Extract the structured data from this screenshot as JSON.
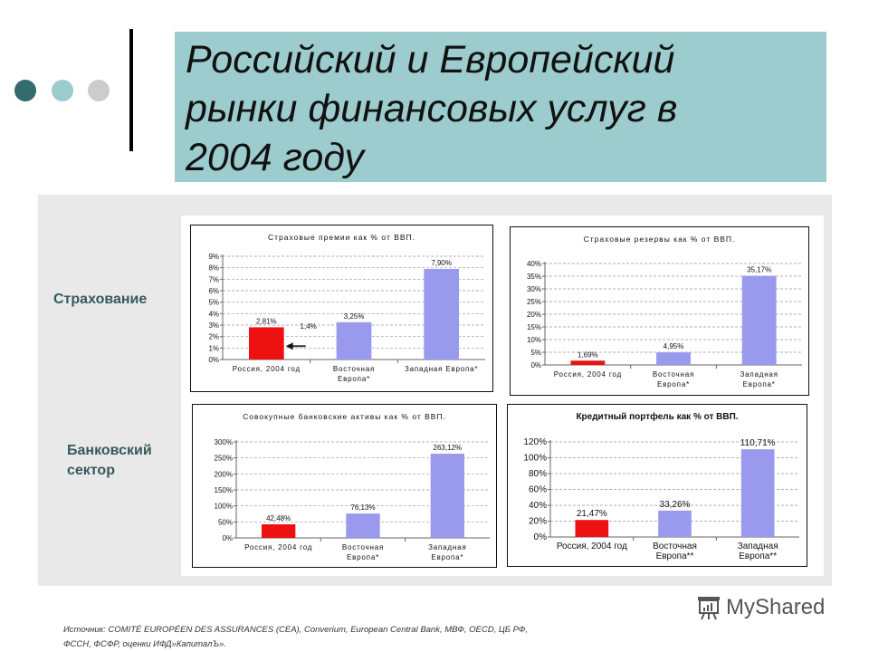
{
  "slide": {
    "title_lines": [
      "Российский и Европейский",
      "рынки финансовых услуг в",
      "2004 году"
    ],
    "dots": [
      "#336b6f",
      "#9ccccd",
      "#cccccc"
    ],
    "section_labels": {
      "insurance": "Страхование",
      "banking_line1": "Банковский",
      "banking_line2": "сектор"
    },
    "source_line1": "Источник: COMITÉ EUROPÉEN DES ASSURANCES (CEA), Converium, European Central Bank, МВФ, OECD, ЦБ РФ,",
    "source_line2": "ФССН, ФСФР, оценки ИФД»КапиталЪ».",
    "watermark": "MyShared"
  },
  "colors": {
    "russia_bar": "#ee1111",
    "europe_bar": "#9999ee",
    "title_bg": "#9ccccd",
    "panel_bg": "#e9e9e9",
    "label_color": "#355a5e"
  },
  "chart_data": [
    {
      "type": "bar",
      "title": "Страховые премии как % от ВВП.",
      "categories": [
        "Россия, 2004 год",
        "Восточная Европа*",
        "Западная Европа*"
      ],
      "values": [
        2.81,
        3.25,
        7.9
      ],
      "value_labels": [
        "2,81%",
        "3,25%",
        "7,90%"
      ],
      "yticks": [
        "0%",
        "1%",
        "2%",
        "3%",
        "4%",
        "5%",
        "6%",
        "7%",
        "8%",
        "9%"
      ],
      "ylim": [
        0,
        9
      ],
      "annotation": {
        "text": "1,4%",
        "arrow_to_value": 1.4
      },
      "grid": true
    },
    {
      "type": "bar",
      "title": "Страховые резервы как % от ВВП.",
      "categories": [
        "Россия, 2004 год",
        "Восточная Европа*",
        "Западная Европа*"
      ],
      "values": [
        1.69,
        4.95,
        35.17
      ],
      "value_labels": [
        "1,69%",
        "4,95%",
        "35,17%"
      ],
      "yticks": [
        "0%",
        "5%",
        "10%",
        "15%",
        "20%",
        "25%",
        "30%",
        "35%",
        "40%"
      ],
      "ylim": [
        0,
        40
      ],
      "grid": true
    },
    {
      "type": "bar",
      "title": "Совокупные банковские активы как % от ВВП.",
      "categories": [
        "Россия, 2004 год",
        "Восточная Европа*",
        "Западная Европа*"
      ],
      "values": [
        42.48,
        76.13,
        263.12
      ],
      "value_labels": [
        "42,48%",
        "76,13%",
        "263,12%"
      ],
      "yticks": [
        "0%",
        "50%",
        "100%",
        "150%",
        "200%",
        "250%",
        "300%"
      ],
      "ylim": [
        0,
        300
      ],
      "grid": true
    },
    {
      "type": "bar",
      "title": "Кредитный портфель как % от ВВП.",
      "categories": [
        "Россия, 2004 год",
        "Восточная Европа**",
        "Западная Европа**"
      ],
      "values": [
        21.47,
        33.26,
        110.71
      ],
      "value_labels": [
        "21,47%",
        "33,26%",
        "110,71%"
      ],
      "yticks": [
        "0%",
        "20%",
        "40%",
        "60%",
        "80%",
        "100%",
        "120%"
      ],
      "ylim": [
        0,
        120
      ],
      "grid": true
    }
  ]
}
